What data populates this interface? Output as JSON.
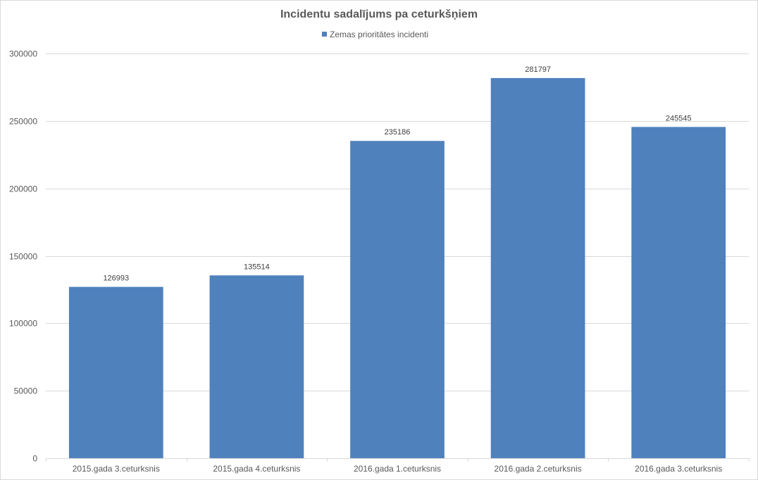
{
  "chart_data": {
    "type": "bar",
    "title": "Incidentu sadalījums pa ceturkšņiem",
    "categories": [
      "2015.gada 3.ceturksnis",
      "2015.gada 4.ceturksnis",
      "2016.gada 1.ceturksnis",
      "2016.gada 2.ceturksnis",
      "2016.gada 3.ceturksnis"
    ],
    "series": [
      {
        "name": "Zemas prioritātes incidenti",
        "values": [
          126993,
          135514,
          235186,
          281797,
          245545
        ],
        "color": "#4f81bd"
      }
    ],
    "ylim": [
      0,
      300000
    ],
    "yticks": [
      "0",
      "50000",
      "100000",
      "150000",
      "200000",
      "250000",
      "300000"
    ],
    "grid": true,
    "legend_position": "top",
    "xlabel": "",
    "ylabel": ""
  },
  "colors": {
    "bar": "#4f81bd",
    "grid": "#d9d9d9",
    "text": "#595959"
  }
}
